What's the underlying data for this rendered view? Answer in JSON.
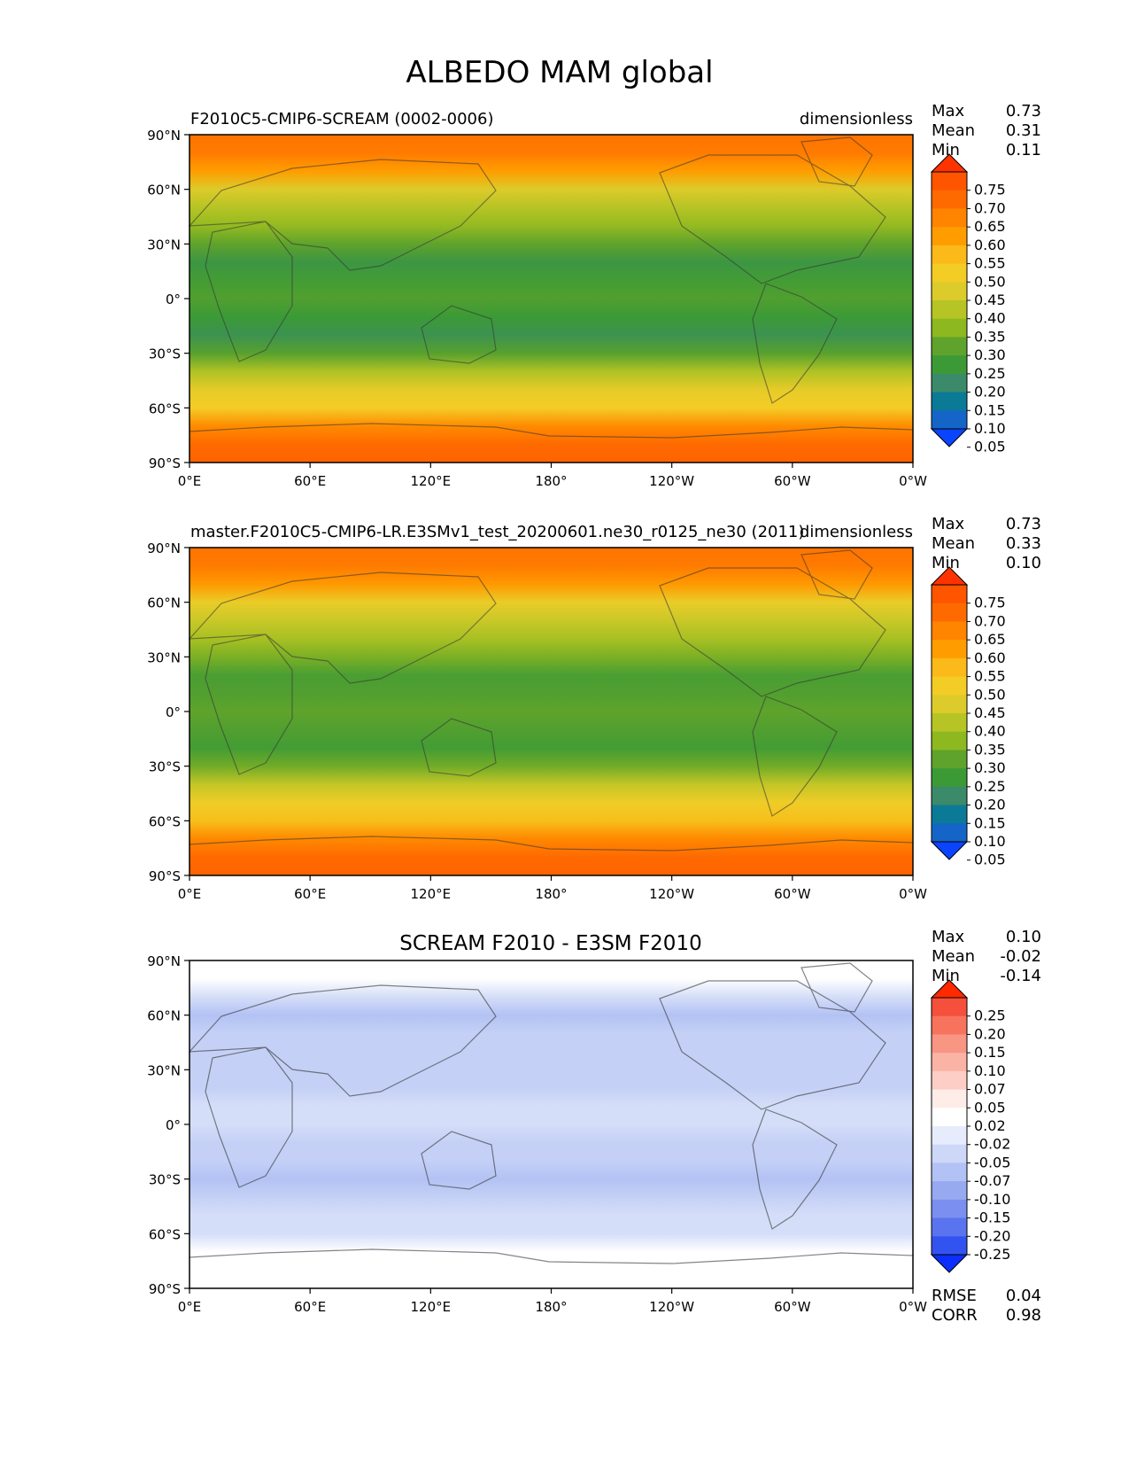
{
  "figure": {
    "title": "ALBEDO MAM global"
  },
  "chart_data": [
    {
      "type": "heatmap",
      "panel": "test",
      "left_title": "F2010C5-CMIP6-SCREAM (0002-0006)",
      "right_title": "dimensionless",
      "stats": [
        {
          "label": "Max",
          "value": "0.73"
        },
        {
          "label": "Mean",
          "value": "0.31"
        },
        {
          "label": "Min",
          "value": "0.11"
        }
      ],
      "x_ticks": [
        "0°E",
        "60°E",
        "120°E",
        "180°",
        "120°W",
        "60°W",
        "0°W"
      ],
      "y_ticks": [
        "90°N",
        "60°N",
        "30°N",
        "0°",
        "30°S",
        "60°S",
        "90°S"
      ],
      "xlim": [
        0,
        360
      ],
      "ylim": [
        -90,
        90
      ],
      "colorbar": {
        "labels": [
          "0.75",
          "0.70",
          "0.65",
          "0.60",
          "0.55",
          "0.50",
          "0.45",
          "0.40",
          "0.35",
          "0.30",
          "0.25",
          "0.20",
          "0.15",
          "0.10",
          "0.05"
        ],
        "colors": [
          "#ff3300",
          "#ff5500",
          "#ff6a00",
          "#ff8400",
          "#ff9d00",
          "#fbb91a",
          "#f4cc26",
          "#dccb2a",
          "#b6c425",
          "#8db820",
          "#5fa32c",
          "#3c9a36",
          "#3b8a6a",
          "#0b7a97",
          "#1565c8",
          "#0a44ff"
        ]
      },
      "zonal_profile": {
        "lat": [
          90,
          80,
          70,
          60,
          50,
          40,
          30,
          20,
          10,
          0,
          -10,
          -20,
          -30,
          -40,
          -50,
          -60,
          -70,
          -80,
          -90
        ],
        "albedo": [
          0.66,
          0.64,
          0.55,
          0.43,
          0.37,
          0.32,
          0.26,
          0.2,
          0.22,
          0.24,
          0.21,
          0.19,
          0.25,
          0.36,
          0.45,
          0.48,
          0.6,
          0.68,
          0.7
        ]
      }
    },
    {
      "type": "heatmap",
      "panel": "reference",
      "left_title": "master.F2010C5-CMIP6-LR.E3SMv1_test_20200601.ne30_r0125_ne30 (2011)",
      "right_title": "dimensionless",
      "stats": [
        {
          "label": "Max",
          "value": "0.73"
        },
        {
          "label": "Mean",
          "value": "0.33"
        },
        {
          "label": "Min",
          "value": "0.10"
        }
      ],
      "x_ticks": [
        "0°E",
        "60°E",
        "120°E",
        "180°",
        "120°W",
        "60°W",
        "0°W"
      ],
      "y_ticks": [
        "90°N",
        "60°N",
        "30°N",
        "0°",
        "30°S",
        "60°S",
        "90°S"
      ],
      "xlim": [
        0,
        360
      ],
      "ylim": [
        -90,
        90
      ],
      "colorbar": {
        "labels": [
          "0.75",
          "0.70",
          "0.65",
          "0.60",
          "0.55",
          "0.50",
          "0.45",
          "0.40",
          "0.35",
          "0.30",
          "0.25",
          "0.20",
          "0.15",
          "0.10",
          "0.05"
        ],
        "colors": [
          "#ff3300",
          "#ff5500",
          "#ff6a00",
          "#ff8400",
          "#ff9d00",
          "#fbb91a",
          "#f4cc26",
          "#dccb2a",
          "#b6c425",
          "#8db820",
          "#5fa32c",
          "#3c9a36",
          "#3b8a6a",
          "#0b7a97",
          "#1565c8",
          "#0a44ff"
        ]
      },
      "zonal_profile": {
        "lat": [
          90,
          80,
          70,
          60,
          50,
          40,
          30,
          20,
          10,
          0,
          -10,
          -20,
          -30,
          -40,
          -50,
          -60,
          -70,
          -80,
          -90
        ],
        "albedo": [
          0.66,
          0.64,
          0.56,
          0.46,
          0.4,
          0.35,
          0.29,
          0.23,
          0.24,
          0.26,
          0.24,
          0.22,
          0.28,
          0.39,
          0.47,
          0.5,
          0.61,
          0.68,
          0.7
        ]
      }
    },
    {
      "type": "heatmap",
      "panel": "difference",
      "title": "SCREAM F2010 - E3SM F2010",
      "stats": [
        {
          "label": "Max",
          "value": "0.10"
        },
        {
          "label": "Mean",
          "value": "-0.02"
        },
        {
          "label": "Min",
          "value": "-0.14"
        }
      ],
      "metrics": [
        {
          "label": "RMSE",
          "value": "0.04"
        },
        {
          "label": "CORR",
          "value": "0.98"
        }
      ],
      "x_ticks": [
        "0°E",
        "60°E",
        "120°E",
        "180°",
        "120°W",
        "60°W",
        "0°W"
      ],
      "y_ticks": [
        "90°N",
        "60°N",
        "30°N",
        "0°",
        "30°S",
        "60°S",
        "90°S"
      ],
      "xlim": [
        0,
        360
      ],
      "ylim": [
        -90,
        90
      ],
      "colorbar": {
        "labels": [
          "0.25",
          "0.20",
          "0.15",
          "0.10",
          "0.07",
          "0.05",
          "0.02",
          "-0.02",
          "-0.05",
          "-0.07",
          "-0.10",
          "-0.15",
          "-0.20",
          "-0.25"
        ],
        "colors": [
          "#ff2a00",
          "#f5503c",
          "#f7735e",
          "#f99583",
          "#fbb3a5",
          "#fccec5",
          "#feece8",
          "#ffffff",
          "#e6ecfb",
          "#cdd7f7",
          "#b3c2f4",
          "#97a9f0",
          "#7a8fef",
          "#5a73ee",
          "#3353f0",
          "#0a2fff"
        ]
      },
      "zonal_profile": {
        "lat": [
          90,
          80,
          70,
          60,
          50,
          40,
          30,
          20,
          10,
          0,
          -10,
          -20,
          -30,
          -40,
          -50,
          -60,
          -70,
          -80,
          -90
        ],
        "diff": [
          0.0,
          0.0,
          -0.02,
          -0.04,
          -0.03,
          -0.03,
          -0.03,
          -0.03,
          -0.02,
          -0.02,
          -0.03,
          -0.03,
          -0.04,
          -0.03,
          -0.02,
          -0.02,
          0.0,
          0.0,
          0.0
        ]
      }
    }
  ]
}
